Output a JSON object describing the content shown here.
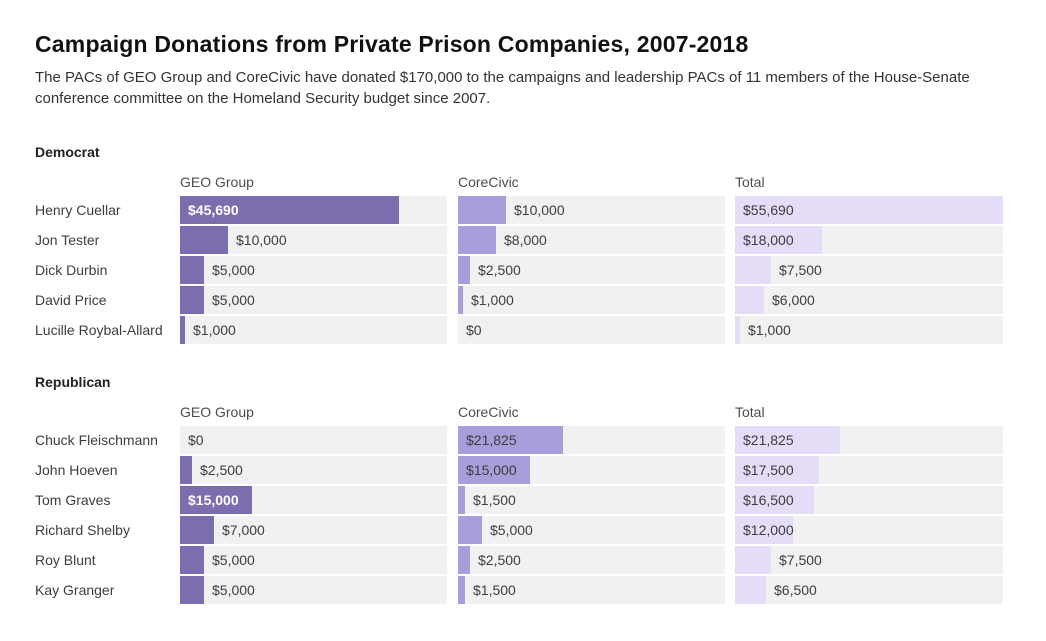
{
  "header": {
    "title": "Campaign Donations from Private Prison Companies, 2007-2018",
    "subtitle": "The PACs of GEO Group and CoreCivic have donated $170,000 to the campaigns and leadership PACs of 11 members of the House-Senate conference committee on the Homeland Security budget since 2007."
  },
  "colors": {
    "geo_bar": "#7c6daf",
    "corecivic_bar": "#a89edb",
    "total_bar": "#e5dcf7",
    "track": "#f1f1f1",
    "inside_light_label": "#3d3d3d",
    "inside_dark_label": "#ffffff"
  },
  "chart_data": {
    "type": "bar",
    "title": "Campaign Donations from Private Prison Companies, 2007-2018",
    "subtitle": "The PACs of GEO Group and CoreCivic have donated $170,000 to the campaigns and leadership PACs of 11 members of the House-Senate conference committee on the Homeland Security budget since 2007.",
    "columns": [
      "GEO Group",
      "CoreCivic",
      "Total"
    ],
    "column_keys": [
      "geo",
      "corecivic",
      "total"
    ],
    "unit": "USD",
    "max_value": 55690,
    "xlim": [
      0,
      55690
    ],
    "grid": false,
    "legend": "none",
    "sections": [
      {
        "party": "Democrat",
        "rows": [
          {
            "name": "Henry Cuellar",
            "values": [
              45690,
              10000,
              55690
            ],
            "labels": [
              "$45,690",
              "$10,000",
              "$55,690"
            ]
          },
          {
            "name": "Jon Tester",
            "values": [
              10000,
              8000,
              18000
            ],
            "labels": [
              "$10,000",
              "$8,000",
              "$18,000"
            ]
          },
          {
            "name": "Dick Durbin",
            "values": [
              5000,
              2500,
              7500
            ],
            "labels": [
              "$5,000",
              "$2,500",
              "$7,500"
            ]
          },
          {
            "name": "David Price",
            "values": [
              5000,
              1000,
              6000
            ],
            "labels": [
              "$5,000",
              "$1,000",
              "$6,000"
            ]
          },
          {
            "name": "Lucille Roybal-Allard",
            "values": [
              1000,
              0,
              1000
            ],
            "labels": [
              "$1,000",
              "$0",
              "$1,000"
            ]
          }
        ]
      },
      {
        "party": "Republican",
        "rows": [
          {
            "name": "Chuck Fleischmann",
            "values": [
              0,
              21825,
              21825
            ],
            "labels": [
              "$0",
              "$21,825",
              "$21,825"
            ]
          },
          {
            "name": "John Hoeven",
            "values": [
              2500,
              15000,
              17500
            ],
            "labels": [
              "$2,500",
              "$15,000",
              "$17,500"
            ]
          },
          {
            "name": "Tom Graves",
            "values": [
              15000,
              1500,
              16500
            ],
            "labels": [
              "$15,000",
              "$1,500",
              "$16,500"
            ]
          },
          {
            "name": "Richard Shelby",
            "values": [
              7000,
              5000,
              12000
            ],
            "labels": [
              "$7,000",
              "$5,000",
              "$12,000"
            ]
          },
          {
            "name": "Roy Blunt",
            "values": [
              5000,
              2500,
              7500
            ],
            "labels": [
              "$5,000",
              "$2,500",
              "$7,500"
            ]
          },
          {
            "name": "Kay Granger",
            "values": [
              5000,
              1500,
              6500
            ],
            "labels": [
              "$5,000",
              "$1,500",
              "$6,500"
            ]
          }
        ]
      }
    ]
  }
}
